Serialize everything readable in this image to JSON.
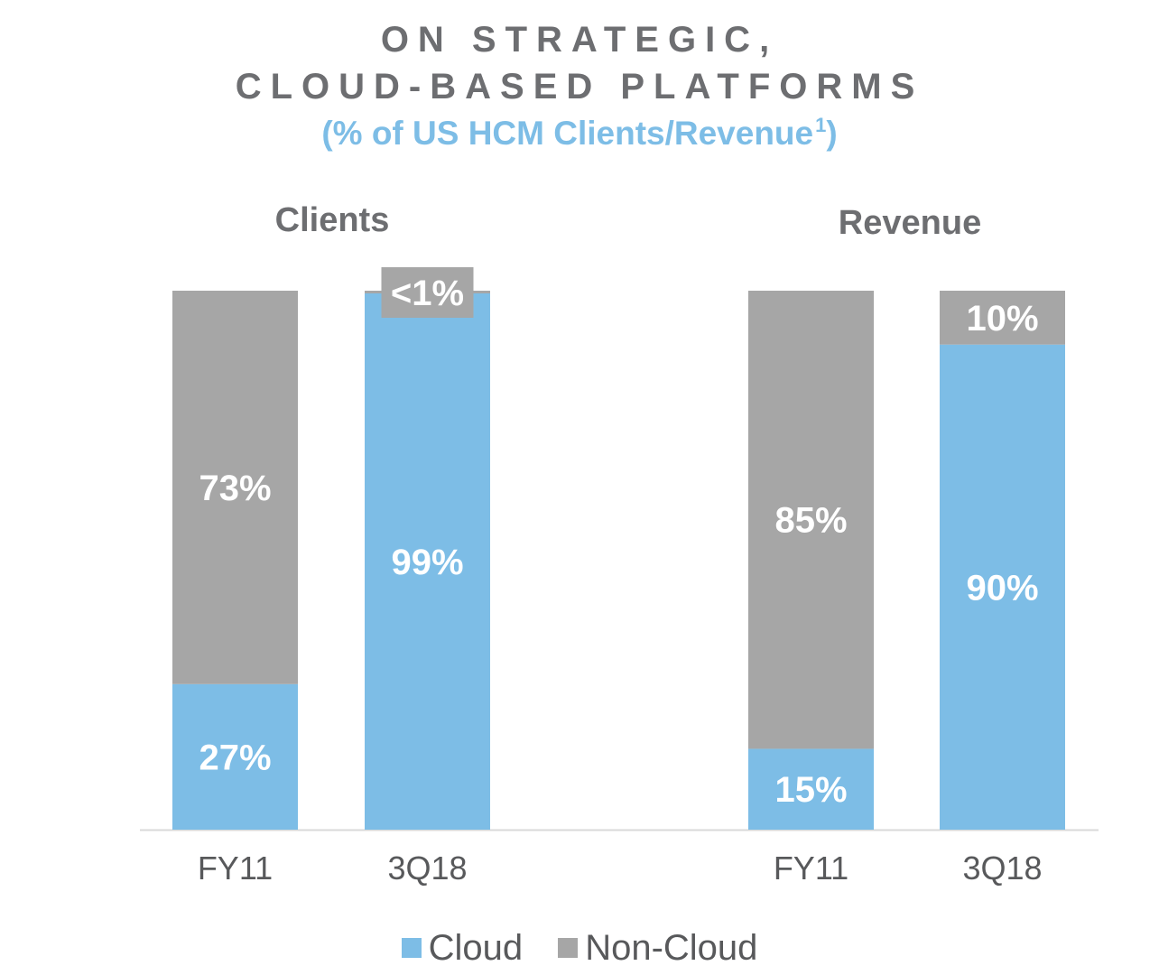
{
  "header": {
    "title_line1": "ON STRATEGIC,",
    "title_line2": "CLOUD-BASED PLATFORMS",
    "subtitle": "(% of US HCM Clients/Revenue",
    "subtitle_sup": "1",
    "subtitle_close": ")"
  },
  "colors": {
    "cloud": "#7dbde6",
    "non_cloud": "#a6a6a6",
    "title": "#6d6e71",
    "subtitle": "#7dbde6",
    "axis": "#d9d9d9",
    "label_text": "#ffffff",
    "tick_text": "#58595b"
  },
  "legend": [
    {
      "key": "cloud",
      "label": "Cloud"
    },
    {
      "key": "non_cloud",
      "label": "Non-Cloud"
    }
  ],
  "chart_data": [
    {
      "type": "bar",
      "stacked": true,
      "title": "Clients",
      "categories": [
        "FY11",
        "3Q18"
      ],
      "ylim": [
        0,
        100
      ],
      "series": [
        {
          "name": "Cloud",
          "values": [
            27,
            99.5
          ],
          "labels": [
            "27%",
            "99%"
          ]
        },
        {
          "name": "Non-Cloud",
          "values": [
            73,
            0.5
          ],
          "labels": [
            "73%",
            "<1%"
          ]
        }
      ]
    },
    {
      "type": "bar",
      "stacked": true,
      "title": "Revenue",
      "categories": [
        "FY11",
        "3Q18"
      ],
      "ylim": [
        0,
        100
      ],
      "series": [
        {
          "name": "Cloud",
          "values": [
            15,
            90
          ],
          "labels": [
            "15%",
            "90%"
          ]
        },
        {
          "name": "Non-Cloud",
          "values": [
            85,
            10
          ],
          "labels": [
            "85%",
            "10%"
          ]
        }
      ]
    }
  ]
}
